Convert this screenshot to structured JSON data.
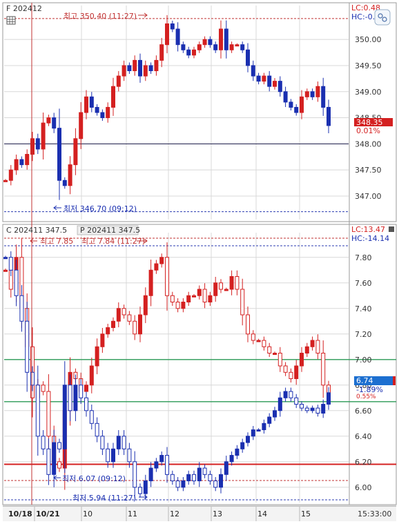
{
  "colors": {
    "up": "#d42020",
    "down": "#1a2fb0",
    "axis_text": "#333333",
    "grid": "#d8d8d8",
    "hilow_dashed": "#c03030",
    "low_dashed": "#2a3ab0",
    "green_line": "#2a9a55",
    "red_line": "#d42020",
    "price_tag_bg": "#d42020",
    "p_tag_bg": "#1c6fd0"
  },
  "top_panel": {
    "symbol": "F 202412",
    "lc": "LC:0.48",
    "hc": "HC:-0.",
    "high_text": "최고 350.40 (11:27)",
    "low_text": "최저 346.70 (09:12)",
    "price_tag": "348.35",
    "pct_tag": "0.01%"
  },
  "bottom_panel": {
    "call_symbol": "C 202411 347.5",
    "put_symbol": "P 202411 347.5",
    "lc": "LC:13.47",
    "hc": "HC:-14.14",
    "call_high_text": "최고 7.85",
    "put_high_text": "최고 7.84 (11:27)",
    "call_low_text": "최저 6.07 (09:12)",
    "put_low_text": "최저 5.94 (11:27)",
    "price_tag": "6.74",
    "pct_tag": "-1.89%",
    "pct_tag2": "0.55%"
  },
  "x_axis": {
    "labels": [
      "10/18",
      "10/21",
      "10",
      "11",
      "12",
      "13",
      "14",
      "15"
    ],
    "time": "15:33:00"
  },
  "chart_data": [
    {
      "type": "candlestick",
      "title": "F 202412",
      "y_ticks": [
        "350.00",
        "349.50",
        "349.00",
        "348.50",
        "348.00",
        "347.50",
        "347.00"
      ],
      "ylim": [
        346.55,
        350.65
      ],
      "high": 350.4,
      "low": 346.7,
      "reference_line": 348.0,
      "last": 348.35,
      "series": [
        {
          "name": "F 202412",
          "values": [
            347.3,
            347.5,
            347.7,
            347.6,
            347.8,
            348.1,
            347.9,
            348.4,
            348.5,
            348.3,
            347.3,
            347.2,
            347.6,
            348.1,
            348.6,
            348.9,
            348.7,
            348.6,
            348.5,
            348.7,
            349.1,
            349.3,
            349.5,
            349.4,
            349.6,
            349.3,
            349.5,
            349.4,
            349.6,
            349.9,
            350.3,
            350.2,
            349.9,
            349.8,
            349.7,
            349.8,
            349.9,
            350.0,
            349.9,
            349.8,
            350.2,
            349.8,
            349.9,
            349.9,
            349.8,
            349.5,
            349.3,
            349.2,
            349.3,
            349.1,
            349.2,
            349.0,
            348.8,
            348.7,
            348.6,
            348.9,
            349.0,
            348.9,
            349.1,
            348.7,
            348.35
          ]
        }
      ]
    },
    {
      "type": "candlestick",
      "title": "C 202411 347.5 / P 202411 347.5",
      "y_ticks": [
        "7.80",
        "7.60",
        "7.40",
        "7.20",
        "7.00",
        "6.80",
        "6.60",
        "6.40",
        "6.20",
        "6.00"
      ],
      "ylim": [
        5.88,
        7.95
      ],
      "reference_lines": [
        7.0,
        6.67,
        6.18
      ],
      "series": [
        {
          "name": "C 202411 347.5",
          "values": [
            7.7,
            7.55,
            7.8,
            7.4,
            7.1,
            6.7,
            6.8,
            6.75,
            6.4,
            6.2,
            6.15,
            6.6,
            6.9,
            6.85,
            6.75,
            6.8,
            6.95,
            7.1,
            7.2,
            7.25,
            7.3,
            7.4,
            7.35,
            7.3,
            7.2,
            7.35,
            7.5,
            7.7,
            7.75,
            7.8,
            7.5,
            7.45,
            7.4,
            7.45,
            7.5,
            7.5,
            7.55,
            7.45,
            7.5,
            7.6,
            7.55,
            7.55,
            7.65,
            7.55,
            7.35,
            7.2,
            7.15,
            7.15,
            7.1,
            7.05,
            7.05,
            6.95,
            6.9,
            6.85,
            6.95,
            7.05,
            7.1,
            7.15,
            7.05,
            6.8,
            6.74
          ]
        },
        {
          "name": "P 202411 347.5",
          "values": [
            7.8,
            7.7,
            7.5,
            7.3,
            6.9,
            6.8,
            6.4,
            6.3,
            6.1,
            6.35,
            6.3,
            6.8,
            6.6,
            6.8,
            6.7,
            6.6,
            6.5,
            6.4,
            6.3,
            6.2,
            6.3,
            6.4,
            6.3,
            6.2,
            6.0,
            5.95,
            6.05,
            6.15,
            6.2,
            6.25,
            6.1,
            6.05,
            6.0,
            6.05,
            6.1,
            6.05,
            6.15,
            6.1,
            6.05,
            6.0,
            6.1,
            6.2,
            6.25,
            6.3,
            6.35,
            6.4,
            6.45,
            6.45,
            6.5,
            6.55,
            6.6,
            6.7,
            6.75,
            6.7,
            6.65,
            6.62,
            6.6,
            6.62,
            6.58,
            6.65,
            6.74
          ]
        }
      ]
    }
  ]
}
